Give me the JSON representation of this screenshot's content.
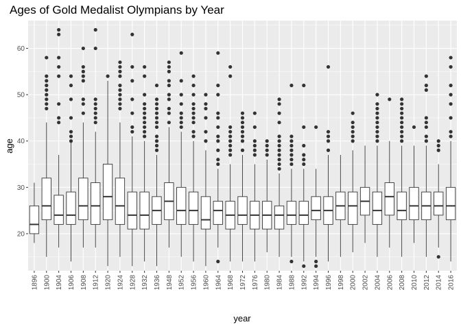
{
  "chart_data": {
    "type": "boxplot",
    "title": "Ages of Gold Medalist Olympians by Year",
    "xlabel": "year",
    "ylabel": "age",
    "ylim": [
      12,
      66
    ],
    "yticks": [
      20,
      30,
      40,
      50,
      60
    ],
    "grid": true,
    "colors": {
      "panel": "#ebebeb",
      "grid": "#ffffff",
      "box": "#333333",
      "box_fill": "#ffffff",
      "point": "#333333"
    },
    "categories": [
      "1896",
      "1900",
      "1904",
      "1906",
      "1908",
      "1912",
      "1920",
      "1924",
      "1928",
      "1932",
      "1936",
      "1948",
      "1952",
      "1956",
      "1960",
      "1964",
      "1968",
      "1972",
      "1976",
      "1980",
      "1984",
      "1988",
      "1992",
      "1994",
      "1996",
      "1998",
      "2000",
      "2002",
      "2004",
      "2006",
      "2008",
      "2010",
      "2012",
      "2014",
      "2016"
    ],
    "boxes": [
      {
        "category": "1896",
        "lower": 18,
        "q1": 20,
        "median": 22,
        "q3": 26,
        "upper": 31,
        "outliers": []
      },
      {
        "category": "1900",
        "lower": 15,
        "q1": 23,
        "median": 26,
        "q3": 32,
        "upper": 44,
        "outliers": [
          47,
          48,
          49,
          50,
          51,
          52,
          53,
          54,
          58
        ]
      },
      {
        "category": "1904",
        "lower": 17,
        "q1": 22,
        "median": 24,
        "q3": 28.3,
        "upper": 37,
        "outliers": [
          44,
          45,
          48,
          54,
          56,
          58,
          63,
          64
        ]
      },
      {
        "category": "1906",
        "lower": 14,
        "q1": 22,
        "median": 24,
        "q3": 29,
        "upper": 40,
        "outliers": [
          40,
          41,
          42,
          45,
          49,
          52,
          54
        ]
      },
      {
        "category": "1908",
        "lower": 17,
        "q1": 23,
        "median": 26,
        "q3": 32,
        "upper": 44,
        "outliers": [
          46,
          48,
          49,
          53,
          54,
          55,
          56,
          60
        ]
      },
      {
        "category": "1912",
        "lower": 17,
        "q1": 22,
        "median": 26,
        "q3": 31,
        "upper": 42,
        "outliers": [
          44,
          45,
          46,
          47,
          48,
          49,
          60,
          64
        ]
      },
      {
        "category": "1920",
        "lower": 13,
        "q1": 23,
        "median": 28,
        "q3": 35,
        "upper": 53,
        "outliers": [
          54
        ]
      },
      {
        "category": "1924",
        "lower": 15,
        "q1": 22,
        "median": 26,
        "q3": 32,
        "upper": 44,
        "outliers": [
          47,
          48,
          49,
          50,
          51,
          52,
          54,
          55,
          56,
          57
        ]
      },
      {
        "category": "1928",
        "lower": 13,
        "q1": 21,
        "median": 24,
        "q3": 29,
        "upper": 41,
        "outliers": [
          42,
          43,
          46,
          49,
          53,
          56,
          63
        ]
      },
      {
        "category": "1932",
        "lower": 14,
        "q1": 21,
        "median": 24,
        "q3": 29,
        "upper": 40,
        "outliers": [
          41,
          42,
          43,
          44,
          45,
          46,
          47,
          48,
          50,
          54,
          56
        ]
      },
      {
        "category": "1936",
        "lower": 13,
        "q1": 22,
        "median": 25,
        "q3": 28,
        "upper": 37,
        "outliers": [
          38,
          39,
          40,
          41,
          43,
          44,
          45,
          46,
          47,
          48,
          49,
          52
        ]
      },
      {
        "category": "1948",
        "lower": 17,
        "q1": 23,
        "median": 27,
        "q3": 31,
        "upper": 43,
        "outliers": [
          44,
          46,
          47,
          49,
          50,
          52,
          53,
          55,
          56,
          57
        ]
      },
      {
        "category": "1952",
        "lower": 15,
        "q1": 22,
        "median": 25,
        "q3": 30,
        "upper": 42,
        "outliers": [
          43,
          44,
          45,
          46,
          48,
          50,
          53,
          59
        ]
      },
      {
        "category": "1956",
        "lower": 14,
        "q1": 22,
        "median": 25,
        "q3": 29,
        "upper": 40,
        "outliers": [
          41,
          42,
          44,
          45,
          46,
          47,
          48,
          50,
          52,
          54
        ]
      },
      {
        "category": "1960",
        "lower": 13,
        "q1": 21,
        "median": 23,
        "q3": 28,
        "upper": 38,
        "outliers": [
          40,
          42,
          45,
          47,
          48,
          50
        ]
      },
      {
        "category": "1964",
        "lower": 17,
        "q1": 22,
        "median": 25,
        "q3": 27,
        "upper": 34,
        "outliers": [
          14,
          35,
          36,
          38,
          40,
          41,
          43,
          45,
          46,
          50,
          52,
          59
        ]
      },
      {
        "category": "1968",
        "lower": 14,
        "q1": 21,
        "median": 24,
        "q3": 27,
        "upper": 35,
        "outliers": [
          37,
          38,
          39,
          40,
          41,
          42,
          43,
          54,
          56
        ]
      },
      {
        "category": "1972",
        "lower": 14,
        "q1": 22,
        "median": 24,
        "q3": 28,
        "upper": 37,
        "outliers": [
          38,
          40,
          41,
          42,
          43,
          44,
          45,
          46
        ]
      },
      {
        "category": "1976",
        "lower": 14,
        "q1": 21,
        "median": 24,
        "q3": 27,
        "upper": 35,
        "outliers": [
          37,
          38,
          39,
          40,
          43,
          46
        ]
      },
      {
        "category": "1980",
        "lower": 16,
        "q1": 21,
        "median": 24,
        "q3": 27,
        "upper": 36,
        "outliers": [
          37,
          38,
          39,
          40
        ]
      },
      {
        "category": "1984",
        "lower": 15,
        "q1": 21,
        "median": 24,
        "q3": 26,
        "upper": 33,
        "outliers": [
          34,
          35,
          36,
          37,
          38,
          39,
          40,
          41,
          44,
          46,
          48,
          49
        ]
      },
      {
        "category": "1988",
        "lower": 15,
        "q1": 22,
        "median": 24,
        "q3": 27,
        "upper": 34,
        "outliers": [
          14,
          35,
          36,
          37,
          38,
          39,
          40,
          41,
          52
        ]
      },
      {
        "category": "1992",
        "lower": 14,
        "q1": 22,
        "median": 24,
        "q3": 27,
        "upper": 34,
        "outliers": [
          13,
          35,
          36,
          37,
          39,
          43,
          52
        ]
      },
      {
        "category": "1994",
        "lower": 15,
        "q1": 23,
        "median": 25,
        "q3": 28,
        "upper": 34,
        "outliers": [
          13,
          14,
          43
        ]
      },
      {
        "category": "1996",
        "lower": 14,
        "q1": 22,
        "median": 25,
        "q3": 28,
        "upper": 37,
        "outliers": [
          38,
          40,
          41,
          42,
          56
        ]
      },
      {
        "category": "1998",
        "lower": 15,
        "q1": 23,
        "median": 26,
        "q3": 29,
        "upper": 37,
        "outliers": []
      },
      {
        "category": "2000",
        "lower": 16,
        "q1": 22,
        "median": 26,
        "q3": 29,
        "upper": 38,
        "outliers": [
          40,
          41,
          42,
          43,
          44,
          46
        ]
      },
      {
        "category": "2002",
        "lower": 18,
        "q1": 24,
        "median": 27,
        "q3": 30,
        "upper": 39,
        "outliers": []
      },
      {
        "category": "2004",
        "lower": 15,
        "q1": 22,
        "median": 25,
        "q3": 29,
        "upper": 39,
        "outliers": [
          40,
          41,
          42,
          43,
          44,
          45,
          46,
          47,
          48,
          50
        ]
      },
      {
        "category": "2006",
        "lower": 17,
        "q1": 24,
        "median": 28,
        "q3": 31,
        "upper": 40,
        "outliers": [
          49
        ]
      },
      {
        "category": "2008",
        "lower": 15,
        "q1": 23,
        "median": 25,
        "q3": 29,
        "upper": 39,
        "outliers": [
          40,
          41,
          42,
          43,
          44,
          45,
          46,
          47,
          48,
          49
        ]
      },
      {
        "category": "2010",
        "lower": 18,
        "q1": 23,
        "median": 26,
        "q3": 30,
        "upper": 39,
        "outliers": [
          43
        ]
      },
      {
        "category": "2012",
        "lower": 15,
        "q1": 23,
        "median": 26,
        "q3": 29,
        "upper": 39,
        "outliers": [
          40,
          41,
          43,
          44,
          45,
          51,
          52,
          54
        ]
      },
      {
        "category": "2014",
        "lower": 17,
        "q1": 24,
        "median": 26,
        "q3": 29,
        "upper": 35,
        "outliers": [
          15,
          38,
          39,
          40
        ]
      },
      {
        "category": "2016",
        "lower": 14,
        "q1": 23,
        "median": 26,
        "q3": 30,
        "upper": 40,
        "outliers": [
          41,
          42,
          45,
          48,
          50,
          52,
          56,
          58
        ]
      }
    ]
  }
}
